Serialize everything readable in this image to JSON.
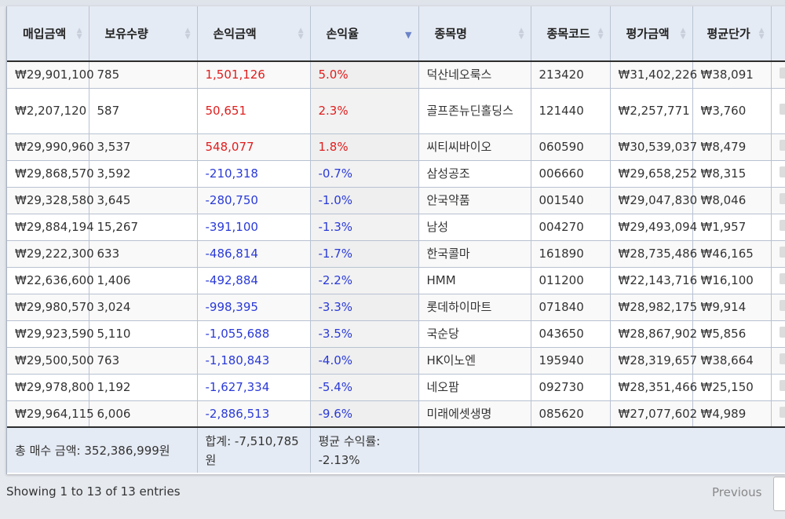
{
  "table": {
    "headers": [
      "매입금액",
      "보유수량",
      "손익금액",
      "손익율",
      "종목명",
      "종목코드",
      "평가금액",
      "평균단가"
    ],
    "rows": [
      {
        "purchase": "₩29,901,100",
        "qty": "785",
        "pl": "1,501,126",
        "rate": "5.0%",
        "name": "덕산네오룩스",
        "code": "213420",
        "eval": "₩31,402,226",
        "avg": "₩38,091",
        "trend": "pos"
      },
      {
        "purchase": "₩2,207,120",
        "qty": "587",
        "pl": "50,651",
        "rate": "2.3%",
        "name": "골프존뉴딘홀딩스",
        "code": "121440",
        "eval": "₩2,257,771",
        "avg": "₩3,760",
        "trend": "pos"
      },
      {
        "purchase": "₩29,990,960",
        "qty": "3,537",
        "pl": "548,077",
        "rate": "1.8%",
        "name": "씨티씨바이오",
        "code": "060590",
        "eval": "₩30,539,037",
        "avg": "₩8,479",
        "trend": "pos"
      },
      {
        "purchase": "₩29,868,570",
        "qty": "3,592",
        "pl": "-210,318",
        "rate": "-0.7%",
        "name": "삼성공조",
        "code": "006660",
        "eval": "₩29,658,252",
        "avg": "₩8,315",
        "trend": "neg"
      },
      {
        "purchase": "₩29,328,580",
        "qty": "3,645",
        "pl": "-280,750",
        "rate": "-1.0%",
        "name": "안국약품",
        "code": "001540",
        "eval": "₩29,047,830",
        "avg": "₩8,046",
        "trend": "neg"
      },
      {
        "purchase": "₩29,884,194",
        "qty": "15,267",
        "pl": "-391,100",
        "rate": "-1.3%",
        "name": "남성",
        "code": "004270",
        "eval": "₩29,493,094",
        "avg": "₩1,957",
        "trend": "neg"
      },
      {
        "purchase": "₩29,222,300",
        "qty": "633",
        "pl": "-486,814",
        "rate": "-1.7%",
        "name": "한국콜마",
        "code": "161890",
        "eval": "₩28,735,486",
        "avg": "₩46,165",
        "trend": "neg"
      },
      {
        "purchase": "₩22,636,600",
        "qty": "1,406",
        "pl": "-492,884",
        "rate": "-2.2%",
        "name": "HMM",
        "code": "011200",
        "eval": "₩22,143,716",
        "avg": "₩16,100",
        "trend": "neg"
      },
      {
        "purchase": "₩29,980,570",
        "qty": "3,024",
        "pl": "-998,395",
        "rate": "-3.3%",
        "name": "롯데하이마트",
        "code": "071840",
        "eval": "₩28,982,175",
        "avg": "₩9,914",
        "trend": "neg"
      },
      {
        "purchase": "₩29,923,590",
        "qty": "5,110",
        "pl": "-1,055,688",
        "rate": "-3.5%",
        "name": "국순당",
        "code": "043650",
        "eval": "₩28,867,902",
        "avg": "₩5,856",
        "trend": "neg"
      },
      {
        "purchase": "₩29,500,500",
        "qty": "763",
        "pl": "-1,180,843",
        "rate": "-4.0%",
        "name": "HK이노엔",
        "code": "195940",
        "eval": "₩28,319,657",
        "avg": "₩38,664",
        "trend": "neg"
      },
      {
        "purchase": "₩29,978,800",
        "qty": "1,192",
        "pl": "-1,627,334",
        "rate": "-5.4%",
        "name": "네오팜",
        "code": "092730",
        "eval": "₩28,351,466",
        "avg": "₩25,150",
        "trend": "neg"
      },
      {
        "purchase": "₩29,964,115",
        "qty": "6,006",
        "pl": "-2,886,513",
        "rate": "-9.6%",
        "name": "미래에셋생명",
        "code": "085620",
        "eval": "₩27,077,602",
        "avg": "₩4,989",
        "trend": "neg"
      }
    ],
    "footer": {
      "total_purchase": "총 매수 금액: 352,386,999원",
      "total_pl": "합계: -7,510,785원",
      "avg_rate": "평균 수익률: -2.13%"
    },
    "sorted_column": "손익율",
    "sort_direction": "descending"
  },
  "pagination": {
    "info": "Showing 1 to 13 of 13 entries",
    "previous_label": "Previous"
  },
  "colors": {
    "positive": "#e01d1d",
    "negative": "#2a3ad8",
    "header_bg": "#e5ebf4"
  }
}
